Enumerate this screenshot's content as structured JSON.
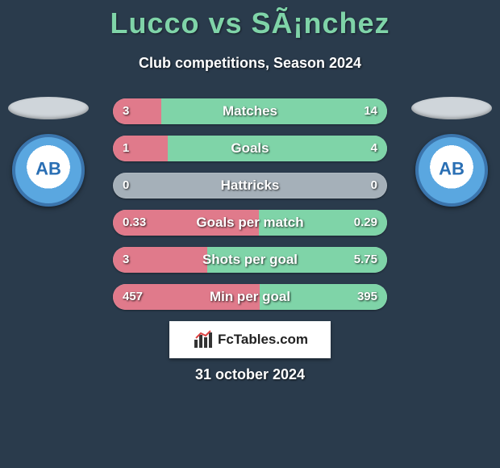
{
  "title": "Lucco vs SÃ¡nchez",
  "subtitle": "Club competitions, Season 2024",
  "badge_text": "AB",
  "logo_text": "FcTables.com",
  "date": "31 october 2024",
  "colors": {
    "background": "#2a3b4c",
    "title": "#7fd4a8",
    "left_bar": "#e07a8b",
    "right_bar": "#7fd4a8",
    "bar_track": "#a5b0b9",
    "text": "#ffffff"
  },
  "bar_style": {
    "height": 32,
    "radius": 16,
    "gap": 14,
    "label_fontsize": 17,
    "value_fontsize": 15
  },
  "stats": [
    {
      "label": "Matches",
      "left_val": "3",
      "right_val": "14",
      "left_pct": 17.6,
      "right_pct": 82.4
    },
    {
      "label": "Goals",
      "left_val": "1",
      "right_val": "4",
      "left_pct": 20.0,
      "right_pct": 80.0
    },
    {
      "label": "Hattricks",
      "left_val": "0",
      "right_val": "0",
      "left_pct": 0.0,
      "right_pct": 0.0
    },
    {
      "label": "Goals per match",
      "left_val": "0.33",
      "right_val": "0.29",
      "left_pct": 53.2,
      "right_pct": 46.8
    },
    {
      "label": "Shots per goal",
      "left_val": "3",
      "right_val": "5.75",
      "left_pct": 34.3,
      "right_pct": 65.7
    },
    {
      "label": "Min per goal",
      "left_val": "457",
      "right_val": "395",
      "left_pct": 53.6,
      "right_pct": 46.4
    }
  ]
}
